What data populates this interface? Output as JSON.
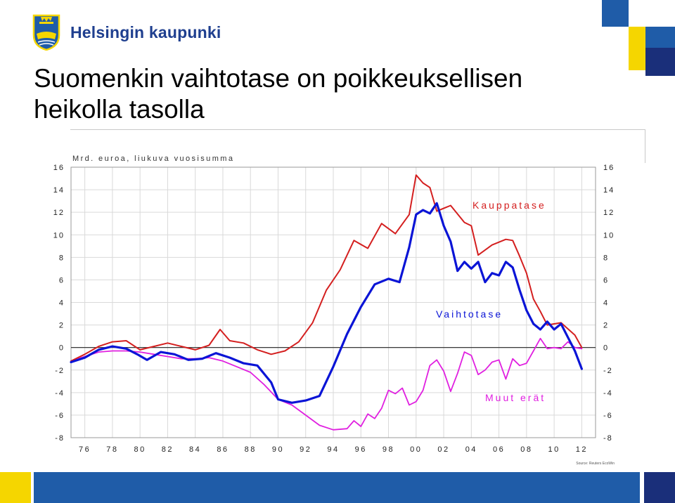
{
  "header": {
    "logo_text": "Helsingin kaupunki",
    "title_line1": "Suomenkin vaihtotase on poikkeuksellisen",
    "title_line2": "heikolla tasolla"
  },
  "source": "Source: Reuters EcoWin",
  "colors": {
    "brand_blue": "#1f5ca8",
    "brand_dark": "#1a2f7a",
    "brand_yellow": "#f5d600",
    "kauppatase": "#d41f1f",
    "vaihtotase": "#0a14d6",
    "muut_erat": "#e020e0"
  },
  "chart_data": {
    "type": "line",
    "unit_label": "Mrd. euroa, liukuva vuosisumma",
    "ylim": [
      -8,
      16
    ],
    "xlim": [
      1975,
      2013
    ],
    "yticks": [
      16,
      14,
      12,
      10,
      8,
      6,
      4,
      2,
      0,
      -2,
      -4,
      -6,
      -8
    ],
    "xtick_labels": [
      "76",
      "78",
      "80",
      "82",
      "84",
      "86",
      "88",
      "90",
      "92",
      "94",
      "96",
      "98",
      "00",
      "02",
      "04",
      "06",
      "08",
      "10",
      "12"
    ],
    "grid": true,
    "zero_line": true,
    "series": [
      {
        "name": "Kauppatase",
        "x": [
          1975.0,
          1976.0,
          1977.0,
          1978.0,
          1979.0,
          1980.0,
          1981.0,
          1982.0,
          1983.0,
          1984.0,
          1985.0,
          1985.8,
          1986.5,
          1987.5,
          1988.5,
          1989.5,
          1990.5,
          1991.5,
          1992.5,
          1993.5,
          1994.5,
          1995.5,
          1996.5,
          1997.5,
          1998.5,
          1999.5,
          2000.0,
          2000.5,
          2001.0,
          2001.5,
          2002.5,
          2003.5,
          2004.0,
          2004.5,
          2005.5,
          2006.5,
          2007.0,
          2007.5,
          2008.0,
          2008.5,
          2009.0,
          2009.5,
          2010.5,
          2011.5,
          2012.0
        ],
        "values": [
          -1.2,
          -0.6,
          0.1,
          0.5,
          0.6,
          -0.2,
          0.1,
          0.4,
          0.1,
          -0.2,
          0.2,
          1.6,
          0.6,
          0.4,
          -0.2,
          -0.6,
          -0.3,
          0.5,
          2.2,
          5.1,
          6.9,
          9.5,
          8.8,
          11.0,
          10.1,
          11.8,
          15.3,
          14.6,
          14.2,
          12.1,
          12.6,
          11.1,
          10.8,
          8.2,
          9.1,
          9.6,
          9.5,
          8.1,
          6.6,
          4.3,
          3.2,
          2.0,
          2.2,
          1.1,
          0.0
        ]
      },
      {
        "name": "Vaihtotase",
        "x": [
          1975.0,
          1976.0,
          1977.0,
          1978.0,
          1979.0,
          1979.8,
          1980.5,
          1981.5,
          1982.5,
          1983.5,
          1984.5,
          1985.5,
          1986.5,
          1987.5,
          1988.5,
          1989.5,
          1990.0,
          1991.0,
          1992.0,
          1993.0,
          1994.0,
          1995.0,
          1996.0,
          1997.0,
          1998.0,
          1998.8,
          1999.5,
          2000.0,
          2000.5,
          2001.0,
          2001.5,
          2002.0,
          2002.5,
          2003.0,
          2003.5,
          2004.0,
          2004.5,
          2005.0,
          2005.5,
          2006.0,
          2006.5,
          2007.0,
          2007.5,
          2008.0,
          2008.5,
          2009.0,
          2009.5,
          2010.0,
          2010.5,
          2011.0,
          2011.5,
          2012.0
        ],
        "values": [
          -1.3,
          -0.9,
          -0.2,
          0.1,
          -0.1,
          -0.6,
          -1.1,
          -0.4,
          -0.6,
          -1.1,
          -1.0,
          -0.5,
          -0.9,
          -1.4,
          -1.6,
          -3.1,
          -4.6,
          -4.9,
          -4.7,
          -4.3,
          -1.7,
          1.2,
          3.6,
          5.6,
          6.1,
          5.8,
          8.9,
          11.8,
          12.2,
          11.9,
          12.8,
          10.8,
          9.4,
          6.8,
          7.6,
          7.0,
          7.6,
          5.8,
          6.6,
          6.4,
          7.6,
          7.1,
          5.1,
          3.3,
          2.1,
          1.6,
          2.3,
          1.6,
          2.1,
          0.9,
          -0.3,
          -1.9
        ]
      },
      {
        "name": "Muut erät",
        "x": [
          1975.0,
          1976.0,
          1977.0,
          1978.0,
          1979.0,
          1980.0,
          1981.0,
          1982.0,
          1983.0,
          1984.0,
          1985.0,
          1986.0,
          1987.0,
          1988.0,
          1989.0,
          1990.0,
          1991.0,
          1992.0,
          1993.0,
          1994.0,
          1995.0,
          1995.5,
          1996.0,
          1996.5,
          1997.0,
          1997.5,
          1998.0,
          1998.5,
          1999.0,
          1999.5,
          2000.0,
          2000.5,
          2001.0,
          2001.5,
          2002.0,
          2002.5,
          2003.0,
          2003.5,
          2004.0,
          2004.5,
          2005.0,
          2005.5,
          2006.0,
          2006.5,
          2007.0,
          2007.5,
          2008.0,
          2008.5,
          2009.0,
          2009.5,
          2010.0,
          2010.5,
          2011.0,
          2011.5,
          2012.0
        ],
        "values": [
          -1.2,
          -0.8,
          -0.4,
          -0.3,
          -0.3,
          -0.4,
          -0.6,
          -0.8,
          -1.0,
          -1.0,
          -0.9,
          -1.2,
          -1.7,
          -2.2,
          -3.3,
          -4.6,
          -5.1,
          -6.0,
          -6.9,
          -7.3,
          -7.2,
          -6.5,
          -7.0,
          -5.9,
          -6.3,
          -5.4,
          -3.8,
          -4.1,
          -3.6,
          -5.1,
          -4.8,
          -3.8,
          -1.6,
          -1.1,
          -2.1,
          -3.9,
          -2.3,
          -0.4,
          -0.7,
          -2.4,
          -2.0,
          -1.3,
          -1.1,
          -2.8,
          -1.0,
          -1.6,
          -1.4,
          -0.3,
          0.8,
          -0.1,
          0.0,
          -0.1,
          0.5,
          0.0,
          -0.1
        ]
      }
    ],
    "series_labels": {
      "kauppatase": "Kauppatase",
      "vaihtotase": "Vaihtotase",
      "muut_erat": "Muut erät"
    }
  }
}
